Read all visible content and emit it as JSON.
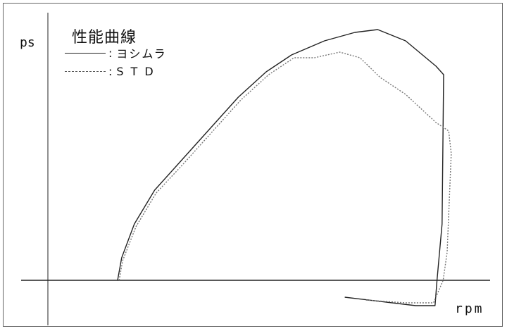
{
  "chart_data": {
    "type": "line",
    "title": "性能曲線",
    "ylabel": "ps",
    "xlabel": "rpm",
    "legend_placement": "top-left",
    "grid": false,
    "legend_colon": ":",
    "series": [
      {
        "name": "ヨシムラ",
        "style": "solid",
        "color": "#222222",
        "points": [
          [
            0.232,
            0.0
          ],
          [
            0.24,
            0.08
          ],
          [
            0.265,
            0.2
          ],
          [
            0.305,
            0.32
          ],
          [
            0.355,
            0.42
          ],
          [
            0.41,
            0.53
          ],
          [
            0.47,
            0.65
          ],
          [
            0.525,
            0.74
          ],
          [
            0.575,
            0.8
          ],
          [
            0.64,
            0.85
          ],
          [
            0.7,
            0.88
          ],
          [
            0.745,
            0.89
          ],
          [
            0.8,
            0.85
          ],
          [
            0.86,
            0.76
          ],
          [
            0.875,
            0.73
          ],
          [
            0.872,
            0.2
          ],
          [
            0.862,
            0.0
          ],
          [
            0.858,
            -0.09
          ],
          [
            0.82,
            -0.09
          ],
          [
            0.68,
            -0.06
          ]
        ]
      },
      {
        "name": "STD",
        "style": "dotted",
        "color": "#777777",
        "points": [
          [
            0.235,
            0.0
          ],
          [
            0.242,
            0.07
          ],
          [
            0.268,
            0.19
          ],
          [
            0.308,
            0.31
          ],
          [
            0.36,
            0.41
          ],
          [
            0.415,
            0.52
          ],
          [
            0.475,
            0.64
          ],
          [
            0.53,
            0.73
          ],
          [
            0.58,
            0.79
          ],
          [
            0.62,
            0.79
          ],
          [
            0.67,
            0.81
          ],
          [
            0.71,
            0.79
          ],
          [
            0.75,
            0.72
          ],
          [
            0.8,
            0.66
          ],
          [
            0.86,
            0.56
          ],
          [
            0.885,
            0.53
          ],
          [
            0.89,
            0.45
          ],
          [
            0.882,
            0.1
          ],
          [
            0.874,
            0.0
          ],
          [
            0.855,
            -0.08
          ],
          [
            0.8,
            -0.08
          ],
          [
            0.72,
            -0.07
          ]
        ]
      }
    ]
  }
}
